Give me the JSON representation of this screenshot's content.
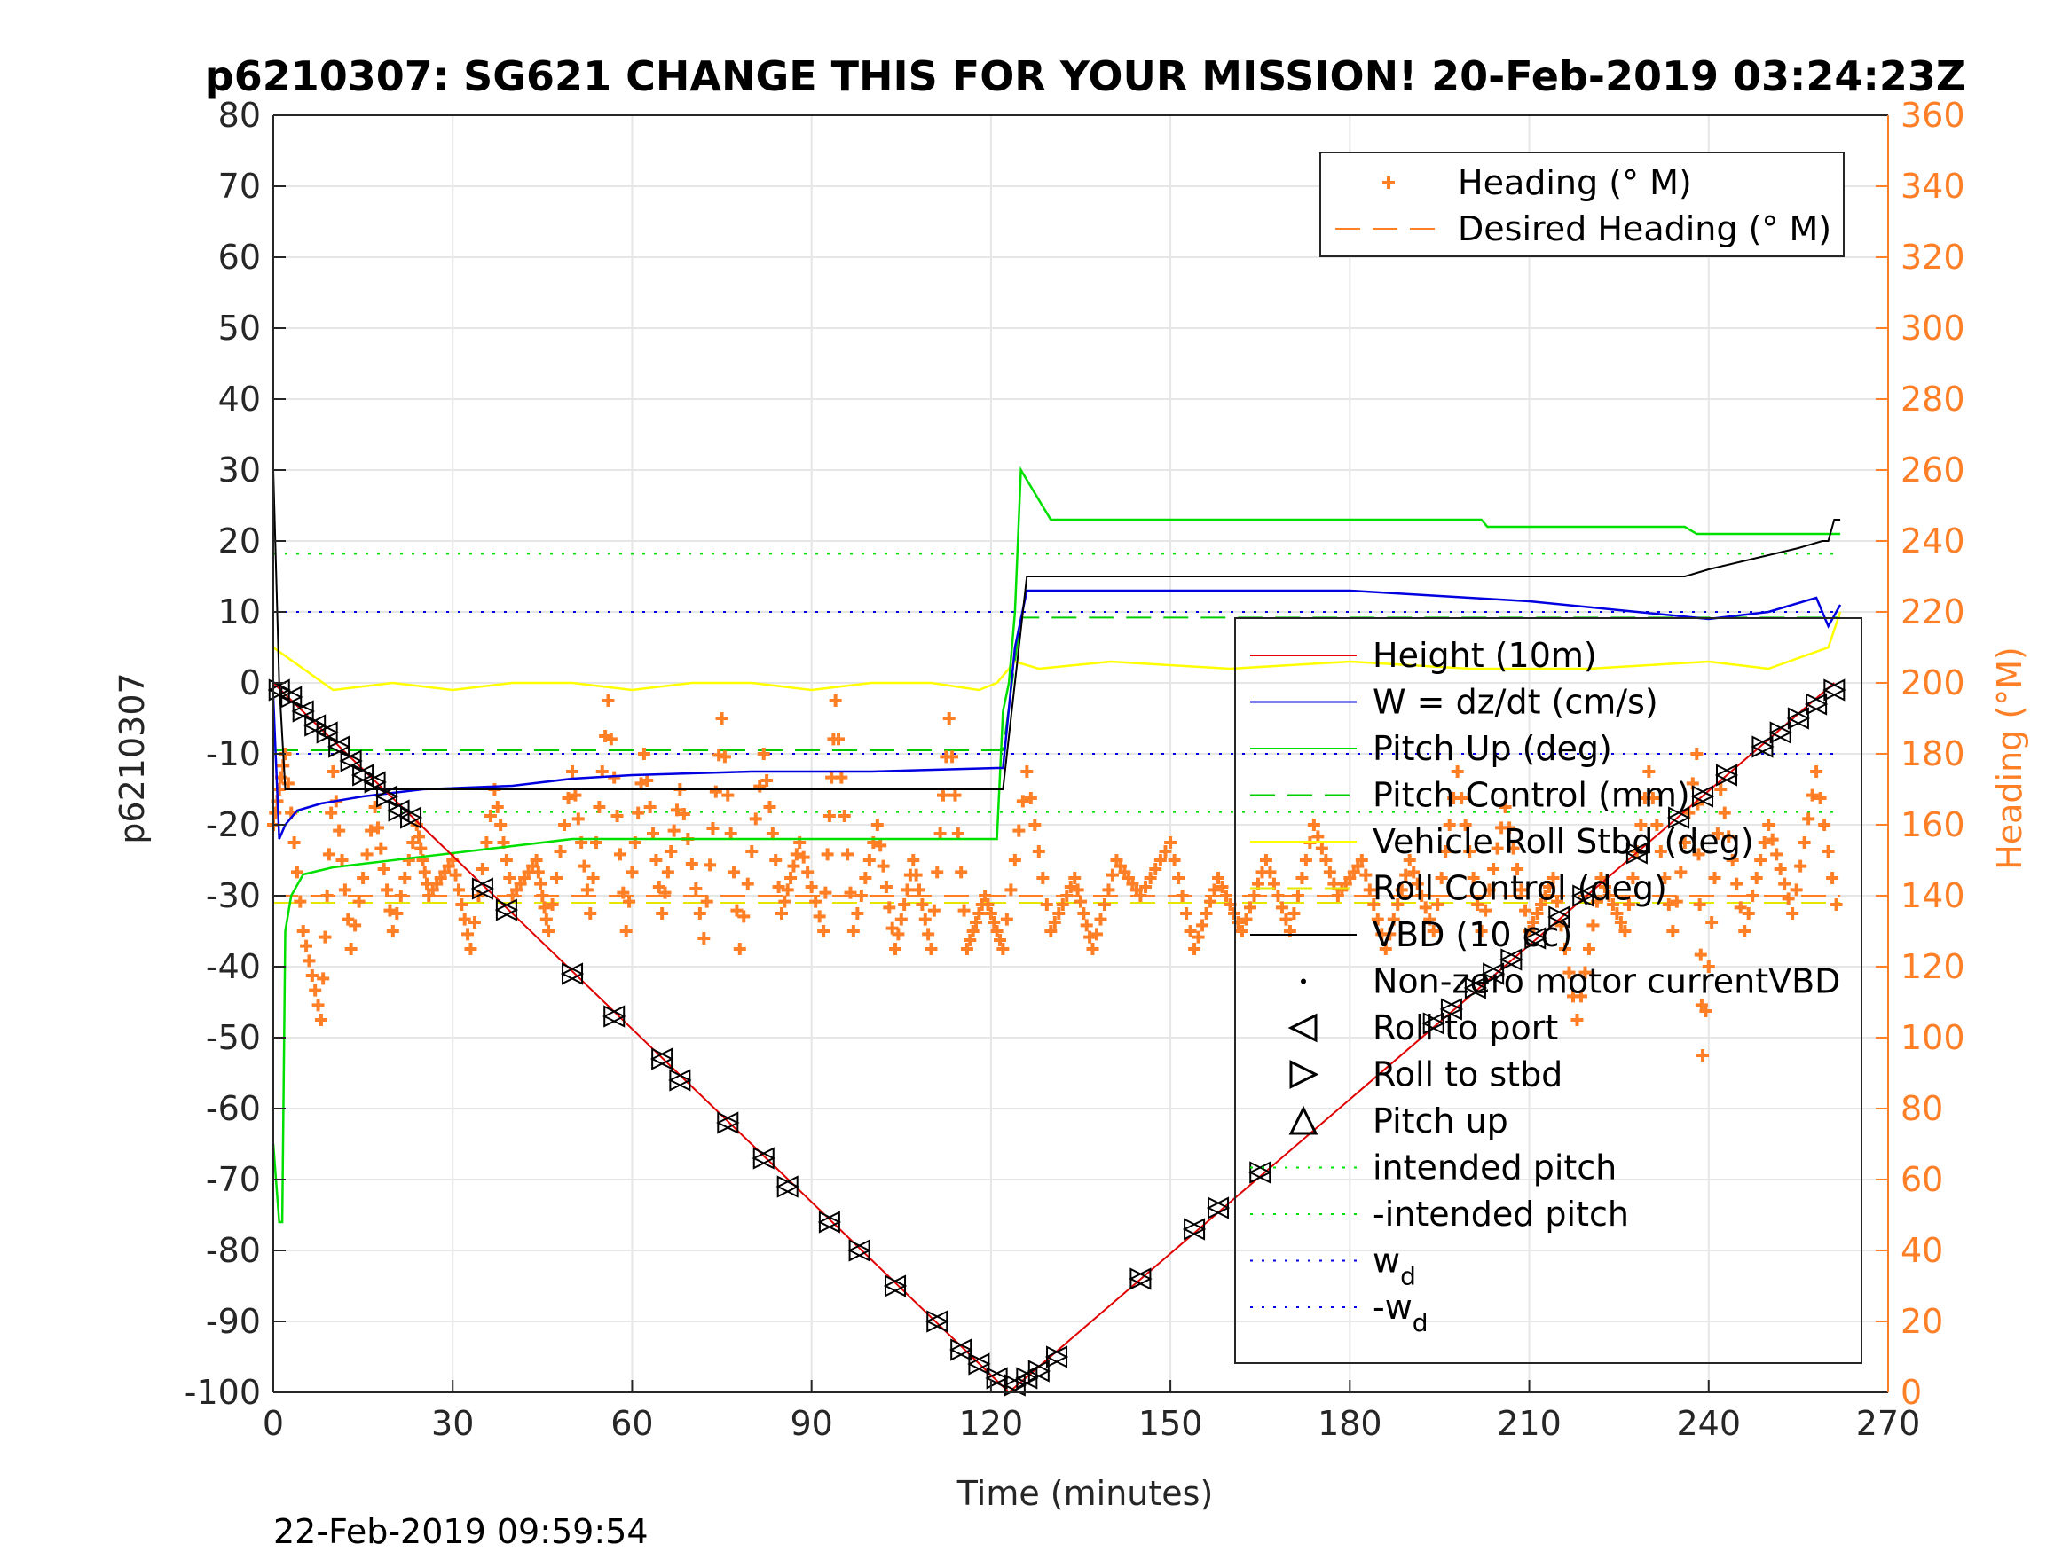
{
  "chart_data": {
    "type": "line",
    "title": "p6210307: SG621 CHANGE THIS FOR YOUR MISSION! 20-Feb-2019 03:24:23Z",
    "xlabel": "Time (minutes)",
    "ylabel_left": "p6210307",
    "ylabel_right": "Heading (°M)",
    "footer": "22-Feb-2019 09:59:54",
    "xlim": [
      0,
      270
    ],
    "ylim_left": [
      -100,
      80
    ],
    "ylim_right": [
      0,
      360
    ],
    "x_ticks": [
      "0",
      "30",
      "60",
      "90",
      "120",
      "150",
      "180",
      "210",
      "240",
      "270"
    ],
    "y_ticks_left": [
      "80",
      "70",
      "60",
      "50",
      "40",
      "30",
      "20",
      "10",
      "0",
      "-10",
      "-20",
      "-30",
      "-40",
      "-50",
      "-60",
      "-70",
      "-80",
      "-90",
      "-100"
    ],
    "y_ticks_right": [
      "360",
      "340",
      "320",
      "300",
      "280",
      "260",
      "240",
      "220",
      "200",
      "180",
      "160",
      "140",
      "120",
      "100",
      "80",
      "60",
      "40",
      "20",
      "0"
    ],
    "grid": true,
    "legend_top": [
      {
        "label": "Heading (° M)",
        "style": "plus-marker",
        "color": "#ff7f27"
      },
      {
        "label": "Desired Heading (° M)",
        "style": "dashed",
        "color": "#ff7f27"
      }
    ],
    "legend_main": [
      {
        "label": "Height (10m)",
        "style": "solid",
        "color": "#e00000"
      },
      {
        "label": "W = dz/dt (cm/s)",
        "style": "solid",
        "color": "#0000e0"
      },
      {
        "label": "Pitch Up (deg)",
        "style": "solid",
        "color": "#00e000"
      },
      {
        "label": "Pitch Control (mm)",
        "style": "dashed",
        "color": "#00cc00"
      },
      {
        "label": "Vehicle Roll Stbd (deg)",
        "style": "solid",
        "color": "#ffff00"
      },
      {
        "label": "Roll Control (deg)",
        "style": "dashed",
        "color": "#e6e600"
      },
      {
        "label": "VBD (10 cc)",
        "style": "solid",
        "color": "#000000"
      },
      {
        "label": "Non-zero motor currentVBD",
        "style": "dot",
        "color": "#000000"
      },
      {
        "label": "Roll to port",
        "style": "triangle-left",
        "color": "#000000"
      },
      {
        "label": "Roll to stbd",
        "style": "triangle-right",
        "color": "#000000"
      },
      {
        "label": "Pitch up",
        "style": "triangle-up",
        "color": "#000000"
      },
      {
        "label": "intended pitch",
        "style": "dotted",
        "color": "#00e000"
      },
      {
        "label": "-intended pitch",
        "style": "dotted",
        "color": "#00e000"
      },
      {
        "label": "w",
        "sub": "d",
        "style": "dotted",
        "color": "#0000e0"
      },
      {
        "label": "-w",
        "sub": "d",
        "style": "dotted",
        "color": "#0000e0"
      }
    ],
    "series": [
      {
        "name": "Height (10m)",
        "axis": "left",
        "x": [
          0,
          123,
          261
        ],
        "y": [
          0,
          -100,
          0
        ]
      },
      {
        "name": "W = dz/dt (cm/s)",
        "axis": "left",
        "x": [
          0,
          1,
          2,
          4,
          8,
          15,
          25,
          40,
          50,
          60,
          80,
          100,
          121,
          122,
          124,
          126,
          150,
          180,
          200,
          210,
          240,
          250,
          258,
          260,
          262
        ],
        "y": [
          -2,
          -22,
          -20,
          -18,
          -17,
          -16,
          -15,
          -14.5,
          -13.5,
          -13,
          -12.5,
          -12.5,
          -12,
          -12,
          5,
          13,
          13,
          13,
          12,
          11.5,
          9,
          10,
          12,
          8,
          11
        ]
      },
      {
        "name": "Pitch Up (deg)",
        "axis": "left",
        "x": [
          0,
          1,
          1.5,
          2,
          3,
          5,
          10,
          30,
          50,
          70,
          100,
          121,
          122,
          123,
          124,
          125,
          130,
          160,
          190,
          202,
          203,
          236,
          238,
          255,
          262
        ],
        "y": [
          -65,
          -76,
          -76,
          -35,
          -30,
          -27,
          -26,
          -24,
          -22,
          -22,
          -22,
          -22,
          -4,
          0,
          10,
          30,
          23,
          23,
          23,
          23,
          22,
          22,
          21,
          21,
          21
        ]
      },
      {
        "name": "Pitch Control (mm)",
        "axis": "left",
        "x": [
          0,
          122,
          125,
          262
        ],
        "y": [
          -9.5,
          -9.5,
          9.2,
          9.2
        ]
      },
      {
        "name": "Roll Control (deg)",
        "axis": "left",
        "x": [
          0,
          262
        ],
        "y": [
          -31,
          -31
        ]
      },
      {
        "name": "Vehicle Roll Stbd (deg)",
        "axis": "left",
        "x": [
          0,
          10,
          20,
          30,
          40,
          50,
          60,
          70,
          80,
          90,
          100,
          110,
          118,
          121,
          124,
          128,
          140,
          160,
          180,
          200,
          220,
          240,
          250,
          260,
          262
        ],
        "y": [
          5,
          -1,
          0,
          -1,
          0,
          0,
          -1,
          0,
          0,
          -1,
          0,
          0,
          -1,
          0,
          3,
          2,
          3,
          2,
          3,
          2,
          2,
          3,
          2,
          5,
          10
        ]
      },
      {
        "name": "VBD (10 cc)",
        "axis": "left",
        "x": [
          0,
          1,
          2,
          122,
          126,
          200,
          236,
          240,
          245,
          250,
          255,
          259,
          260,
          261,
          262
        ],
        "y": [
          30,
          0,
          -15,
          -15,
          15,
          15,
          15,
          16,
          17,
          18,
          19,
          20,
          20,
          23,
          23
        ]
      },
      {
        "name": "intended pitch",
        "axis": "left",
        "x": [
          0,
          262
        ],
        "y": [
          18.2,
          18.2
        ]
      },
      {
        "name": "-intended pitch",
        "axis": "left",
        "x": [
          0,
          262
        ],
        "y": [
          -18.2,
          -18.2
        ]
      },
      {
        "name": "w_d",
        "axis": "left",
        "x": [
          0,
          262
        ],
        "y": [
          10,
          10
        ]
      },
      {
        "name": "-w_d",
        "axis": "left",
        "x": [
          0,
          262
        ],
        "y": [
          -10,
          -10
        ]
      },
      {
        "name": "Desired Heading (° M)",
        "axis": "right",
        "x": [
          0,
          262
        ],
        "y": [
          140,
          140
        ]
      },
      {
        "name": "Heading (° M)",
        "axis": "right",
        "x": [
          0,
          2,
          5,
          8,
          10,
          13,
          17,
          20,
          24,
          26,
          30,
          33,
          37,
          40,
          44,
          46,
          50,
          53,
          56,
          59,
          62,
          65,
          68,
          72,
          75,
          78,
          82,
          85,
          88,
          92,
          94,
          97,
          101,
          104,
          107,
          110,
          113,
          116,
          119,
          122,
          126,
          130,
          134,
          137,
          141,
          145,
          150,
          154,
          158,
          162,
          166,
          170,
          174,
          178,
          182,
          186,
          190,
          194,
          198,
          202,
          206,
          210,
          214,
          218,
          222,
          226,
          230,
          234,
          238,
          239,
          242,
          246,
          250,
          254,
          258,
          262
        ],
        "y": [
          160,
          180,
          130,
          105,
          175,
          125,
          165,
          130,
          160,
          140,
          150,
          125,
          170,
          140,
          150,
          130,
          175,
          135,
          195,
          130,
          180,
          135,
          170,
          128,
          190,
          125,
          180,
          135,
          155,
          130,
          195,
          130,
          160,
          125,
          150,
          125,
          190,
          125,
          140,
          125,
          175,
          130,
          145,
          125,
          150,
          140,
          155,
          125,
          145,
          130,
          150,
          130,
          160,
          140,
          150,
          125,
          150,
          130,
          175,
          130,
          165,
          130,
          145,
          105,
          145,
          130,
          175,
          130,
          180,
          95,
          170,
          130,
          160,
          135,
          175,
          130
        ]
      },
      {
        "name": "Roll to port / Roll to stbd (markers on Height)",
        "axis": "left",
        "x": [
          1,
          3,
          5,
          7,
          9,
          11,
          13,
          15,
          17,
          19,
          21,
          23,
          35,
          39,
          50,
          57,
          65,
          68,
          76,
          82,
          86,
          93,
          98,
          104,
          111,
          115,
          118,
          121,
          124,
          126,
          128,
          131,
          145,
          154,
          158,
          165,
          194,
          197,
          201,
          204,
          207,
          211,
          215,
          219,
          228,
          235,
          239,
          243,
          249,
          252,
          255,
          258,
          261
        ],
        "y": [
          -1,
          -2,
          -4,
          -6,
          -7,
          -9,
          -11,
          -13,
          -14,
          -16,
          -18,
          -19,
          -29,
          -32,
          -41,
          -47,
          -53,
          -56,
          -62,
          -67,
          -71,
          -76,
          -80,
          -85,
          -90,
          -94,
          -96,
          -98,
          -99,
          -98,
          -97,
          -95,
          -84,
          -77,
          -74,
          -69,
          -48,
          -46,
          -43,
          -41,
          -39,
          -36,
          -33,
          -30,
          -24,
          -19,
          -16,
          -13,
          -9,
          -7,
          -5,
          -3,
          -1
        ]
      }
    ]
  }
}
